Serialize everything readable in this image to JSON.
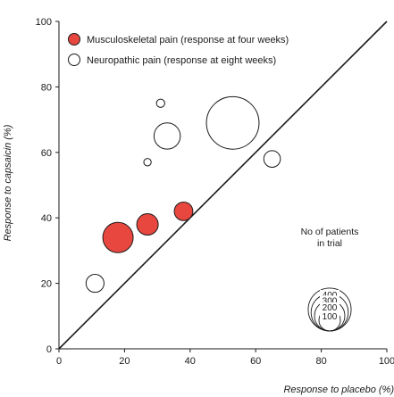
{
  "chart_data": {
    "type": "scatter",
    "subtype": "bubble",
    "xlabel": "Response to placebo (%)",
    "ylabel": "Response to capsaicin (%)",
    "xlim": [
      0,
      100
    ],
    "ylim": [
      0,
      100
    ],
    "x_ticks": [
      0,
      20,
      40,
      60,
      80,
      100
    ],
    "y_ticks": [
      0,
      20,
      40,
      60,
      80,
      100
    ],
    "grid": false,
    "reference_line": "y = x",
    "legend_position": "top-left",
    "series": [
      {
        "name": "Musculoskeletal pain (response at four weeks)",
        "fill": "#e8473f",
        "points": [
          {
            "x": 18,
            "y": 34,
            "patients": 200
          },
          {
            "x": 27,
            "y": 38,
            "patients": 100
          },
          {
            "x": 38,
            "y": 42,
            "patients": 75
          }
        ]
      },
      {
        "name": "Neuropathic pain (response at eight weeks)",
        "fill": "#ffffff",
        "points": [
          {
            "x": 11,
            "y": 20,
            "patients": 70
          },
          {
            "x": 31,
            "y": 75,
            "patients": 15
          },
          {
            "x": 27,
            "y": 57,
            "patients": 12
          },
          {
            "x": 33,
            "y": 65,
            "patients": 150
          },
          {
            "x": 53,
            "y": 69,
            "patients": 600
          },
          {
            "x": 65,
            "y": 58,
            "patients": 60
          }
        ]
      }
    ],
    "size_key": {
      "title_line1": "No of patients",
      "title_line2": "in trial",
      "values": [
        400,
        300,
        200,
        100
      ]
    }
  },
  "colors": {
    "musculoskeletal": "#e8473f",
    "neuropathic": "#ffffff",
    "stroke": "#1a1a1a"
  }
}
